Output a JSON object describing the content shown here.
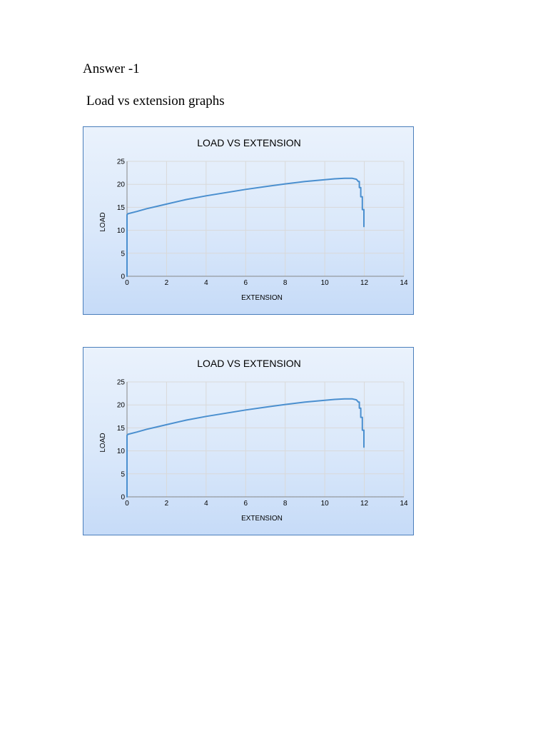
{
  "document": {
    "heading": "Answer -1",
    "subheading": "Load vs extension graphs"
  },
  "chart_data": [
    {
      "type": "line",
      "title": "LOAD VS EXTENSION",
      "xlabel": "EXTENSION",
      "ylabel": "LOAD",
      "xlim": [
        0,
        14
      ],
      "ylim": [
        0,
        25
      ],
      "xticks": [
        "0",
        "2",
        "4",
        "6",
        "8",
        "10",
        "12",
        "14"
      ],
      "yticks": [
        "0",
        "5",
        "10",
        "15",
        "20",
        "25"
      ],
      "grid": true,
      "legend": "none",
      "line_color": "#4a8fcf",
      "series": [
        {
          "x": [
            0,
            0,
            0.05,
            0.5,
            1,
            1.5,
            2,
            3,
            4,
            5,
            6,
            7,
            8,
            9,
            10,
            10.5,
            11,
            11.4,
            11.6,
            11.7,
            11.75,
            11.75,
            11.82,
            11.82,
            11.9,
            11.9,
            11.98,
            11.98
          ],
          "y": [
            0,
            13.4,
            13.6,
            14.1,
            14.7,
            15.2,
            15.7,
            16.7,
            17.5,
            18.2,
            18.9,
            19.5,
            20.1,
            20.6,
            21.0,
            21.2,
            21.3,
            21.3,
            21.1,
            20.6,
            20.6,
            19.3,
            19.3,
            17.3,
            17.3,
            14.5,
            14.5,
            10.8
          ]
        }
      ]
    },
    {
      "type": "line",
      "title": "LOAD VS EXTENSION",
      "xlabel": "EXTENSION",
      "ylabel": "LOAD",
      "xlim": [
        0,
        14
      ],
      "ylim": [
        0,
        25
      ],
      "xticks": [
        "0",
        "2",
        "4",
        "6",
        "8",
        "10",
        "12",
        "14"
      ],
      "yticks": [
        "0",
        "5",
        "10",
        "15",
        "20",
        "25"
      ],
      "grid": true,
      "legend": "none",
      "line_color": "#4a8fcf",
      "series": [
        {
          "x": [
            0,
            0,
            0.05,
            0.5,
            1,
            1.5,
            2,
            3,
            4,
            5,
            6,
            7,
            8,
            9,
            10,
            10.5,
            11,
            11.4,
            11.6,
            11.7,
            11.75,
            11.75,
            11.82,
            11.82,
            11.9,
            11.9,
            11.98,
            11.98
          ],
          "y": [
            0,
            13.4,
            13.6,
            14.1,
            14.7,
            15.2,
            15.7,
            16.7,
            17.5,
            18.2,
            18.9,
            19.5,
            20.1,
            20.6,
            21.0,
            21.2,
            21.3,
            21.3,
            21.1,
            20.6,
            20.6,
            19.3,
            19.3,
            17.3,
            17.3,
            14.5,
            14.5,
            10.8
          ]
        }
      ]
    }
  ]
}
